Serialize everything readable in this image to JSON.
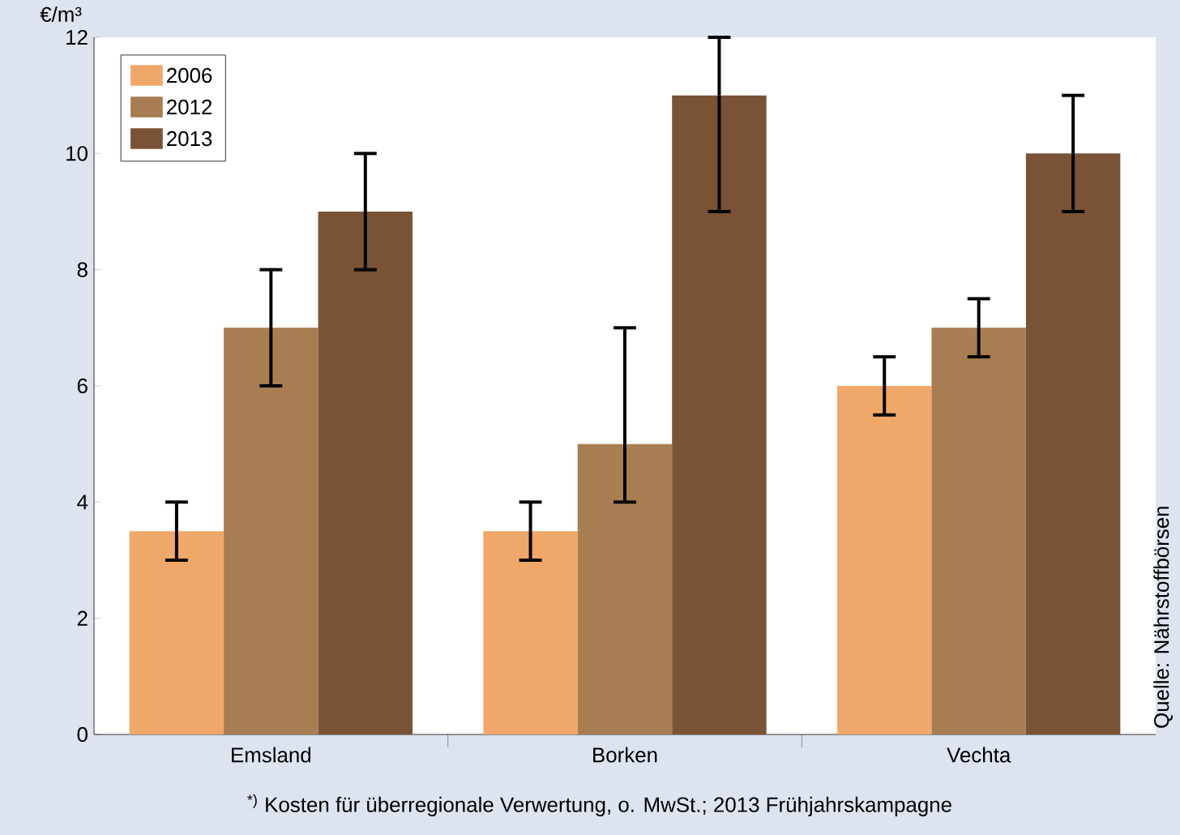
{
  "chart_data": {
    "type": "bar",
    "ylabel": "€/m³",
    "categories": [
      "Emsland",
      "Borken",
      "Vechta"
    ],
    "series": [
      {
        "name": "2006",
        "color": "#f0a86a",
        "values": [
          3.5,
          3.5,
          6
        ],
        "errors": [
          [
            3,
            4
          ],
          [
            3,
            4
          ],
          [
            5.5,
            6.5
          ]
        ]
      },
      {
        "name": "2012",
        "color": "#a97d52",
        "values": [
          7,
          5,
          7
        ],
        "errors": [
          [
            6,
            8
          ],
          [
            4,
            7
          ],
          [
            6.5,
            7.5
          ]
        ]
      },
      {
        "name": "2013",
        "color": "#7a5236",
        "values": [
          9,
          11,
          10
        ],
        "errors": [
          [
            8,
            10
          ],
          [
            9,
            12
          ],
          [
            9,
            11
          ]
        ]
      }
    ],
    "ylim": [
      0,
      12
    ],
    "yticks": [
      0,
      2,
      4,
      6,
      8,
      10,
      12
    ],
    "legend": "top left",
    "grid": false,
    "annotations": [
      "$^{*)}$ Kosten für überregionale Verwertung, o. MwSt.; 2013 Frühjahrskampagne",
      "Quelle: Nährstoffbörsen"
    ]
  }
}
